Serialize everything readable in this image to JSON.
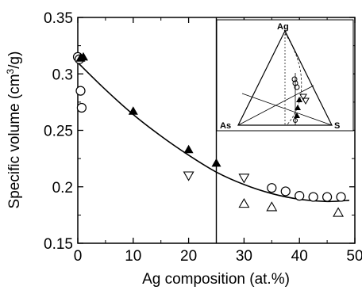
{
  "chart_data": {
    "type": "scatter",
    "title": "",
    "xlabel": "Ag composition (at.%)",
    "ylabel_main": "Specific volume (cm",
    "ylabel_sup": "3",
    "ylabel_end": "/g)",
    "xlim": [
      0,
      50
    ],
    "ylim": [
      0.15,
      0.35
    ],
    "xticks": [
      0,
      10,
      20,
      30,
      40,
      50
    ],
    "yticks": [
      0.15,
      0.2,
      0.25,
      0.3,
      0.35
    ],
    "xtick_labels": [
      "0",
      "10",
      "20",
      "30",
      "40",
      "50"
    ],
    "ytick_labels": [
      "0.15",
      "0.2",
      "0.25",
      "0.3",
      "0.35"
    ],
    "grid": false,
    "vertical_line_x": 25,
    "series": [
      {
        "marker": "open-circle",
        "points": [
          [
            0,
            0.315
          ],
          [
            0.3,
            0.313
          ],
          [
            0.5,
            0.285
          ],
          [
            0.7,
            0.27
          ],
          [
            35,
            0.199
          ],
          [
            37.5,
            0.196
          ],
          [
            40,
            0.192
          ],
          [
            42.5,
            0.191
          ],
          [
            45,
            0.191
          ],
          [
            47.5,
            0.191
          ]
        ]
      },
      {
        "marker": "filled-triangle",
        "points": [
          [
            0.5,
            0.314
          ],
          [
            1,
            0.315
          ],
          [
            10,
            0.267
          ],
          [
            20,
            0.233
          ],
          [
            25,
            0.221
          ]
        ]
      },
      {
        "marker": "open-triangle-down",
        "points": [
          [
            20,
            0.21
          ],
          [
            30,
            0.208
          ]
        ]
      },
      {
        "marker": "open-triangle-up",
        "points": [
          [
            30,
            0.185
          ],
          [
            35,
            0.182
          ],
          [
            47,
            0.177
          ]
        ]
      }
    ],
    "fit_curve": {
      "points": [
        [
          0,
          0.31
        ],
        [
          5,
          0.286
        ],
        [
          10,
          0.264
        ],
        [
          15,
          0.245
        ],
        [
          20,
          0.228
        ],
        [
          25,
          0.213
        ],
        [
          30,
          0.202
        ],
        [
          35,
          0.194
        ],
        [
          40,
          0.189
        ],
        [
          45,
          0.187
        ],
        [
          49,
          0.188
        ]
      ]
    },
    "inset": {
      "type": "ternary",
      "labels": {
        "top": "Ag",
        "left": "As",
        "right": "S"
      }
    }
  }
}
